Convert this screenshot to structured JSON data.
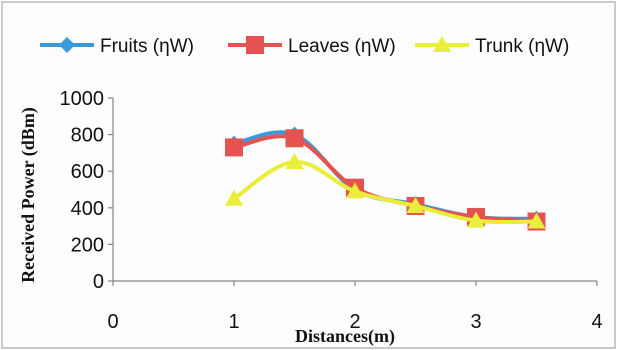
{
  "chart_data": {
    "type": "line",
    "xlabel": "Distances(m)",
    "ylabel": "Received Power (dBm)",
    "xlim": [
      0,
      4
    ],
    "ylim": [
      0,
      1000
    ],
    "xticks": [
      0,
      1,
      2,
      3,
      4
    ],
    "yticks": [
      0,
      200,
      400,
      600,
      800,
      1000
    ],
    "x": [
      1,
      1.5,
      2,
      2.5,
      3,
      3.5
    ],
    "grid": false,
    "legend_position": "top",
    "series": [
      {
        "name": "Fruits  (ηW)",
        "values": [
          750,
          800,
          500,
          420,
          350,
          340
        ],
        "color": "#3a9ad9",
        "marker": "diamond"
      },
      {
        "name": "Leaves  (ηW)",
        "values": [
          730,
          780,
          510,
          410,
          350,
          325
        ],
        "color": "#e55350",
        "marker": "square"
      },
      {
        "name": "Trunk (ηW)",
        "values": [
          450,
          650,
          490,
          410,
          330,
          325
        ],
        "color": "#e8ee3a",
        "marker": "triangle"
      }
    ]
  }
}
